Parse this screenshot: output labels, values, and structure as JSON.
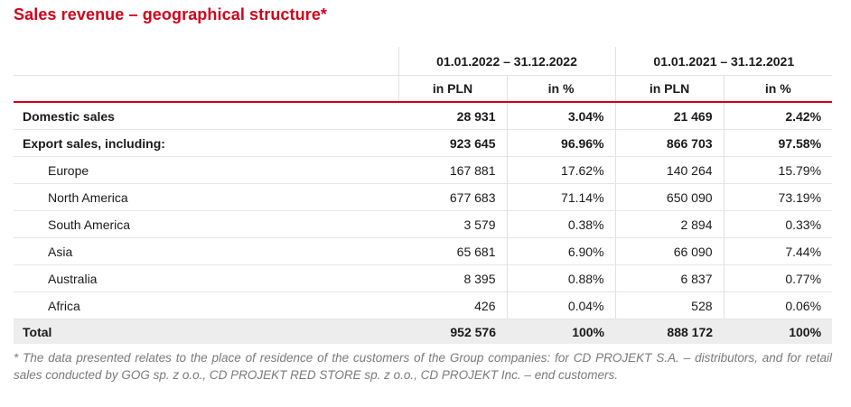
{
  "title": "Sales revenue – geographical structure*",
  "periods": [
    "01.01.2022 – 31.12.2022",
    "01.01.2021 – 31.12.2021"
  ],
  "units": [
    "in PLN",
    "in %",
    "in PLN",
    "in %"
  ],
  "rows": [
    {
      "label": "Domestic sales",
      "v2022": "28 931",
      "p2022": "3.04%",
      "v2021": "21 469",
      "p2021": "2.42%"
    },
    {
      "label": "Export sales, including:",
      "v2022": "923 645",
      "p2022": "96.96%",
      "v2021": "866 703",
      "p2021": "97.58%"
    },
    {
      "label": "Europe",
      "v2022": "167 881",
      "p2022": "17.62%",
      "v2021": "140 264",
      "p2021": "15.79%"
    },
    {
      "label": "North America",
      "v2022": "677 683",
      "p2022": "71.14%",
      "v2021": "650 090",
      "p2021": "73.19%"
    },
    {
      "label": "South America",
      "v2022": "3 579",
      "p2022": "0.38%",
      "v2021": "2 894",
      "p2021": "0.33%"
    },
    {
      "label": "Asia",
      "v2022": "65 681",
      "p2022": "6.90%",
      "v2021": "66 090",
      "p2021": "7.44%"
    },
    {
      "label": "Australia",
      "v2022": "8 395",
      "p2022": "0.88%",
      "v2021": "6 837",
      "p2021": "0.77%"
    },
    {
      "label": "Africa",
      "v2022": "426",
      "p2022": "0.04%",
      "v2021": "528",
      "p2021": "0.06%"
    },
    {
      "label": "Total",
      "v2022": "952 576",
      "p2022": "100%",
      "v2021": "888 172",
      "p2021": "100%"
    }
  ],
  "footnote": "* The data presented relates to the place of residence of the customers of the Group companies: for CD PROJEKT S.A. – distributors, and for retail sales conducted by GOG sp. z o.o., CD PROJEKT RED STORE sp. z o.o., CD PROJEKT Inc. – end customers.",
  "colors": {
    "accent": "#d0021b",
    "total_bg": "#ededed",
    "footnote": "#7a7a7a"
  }
}
